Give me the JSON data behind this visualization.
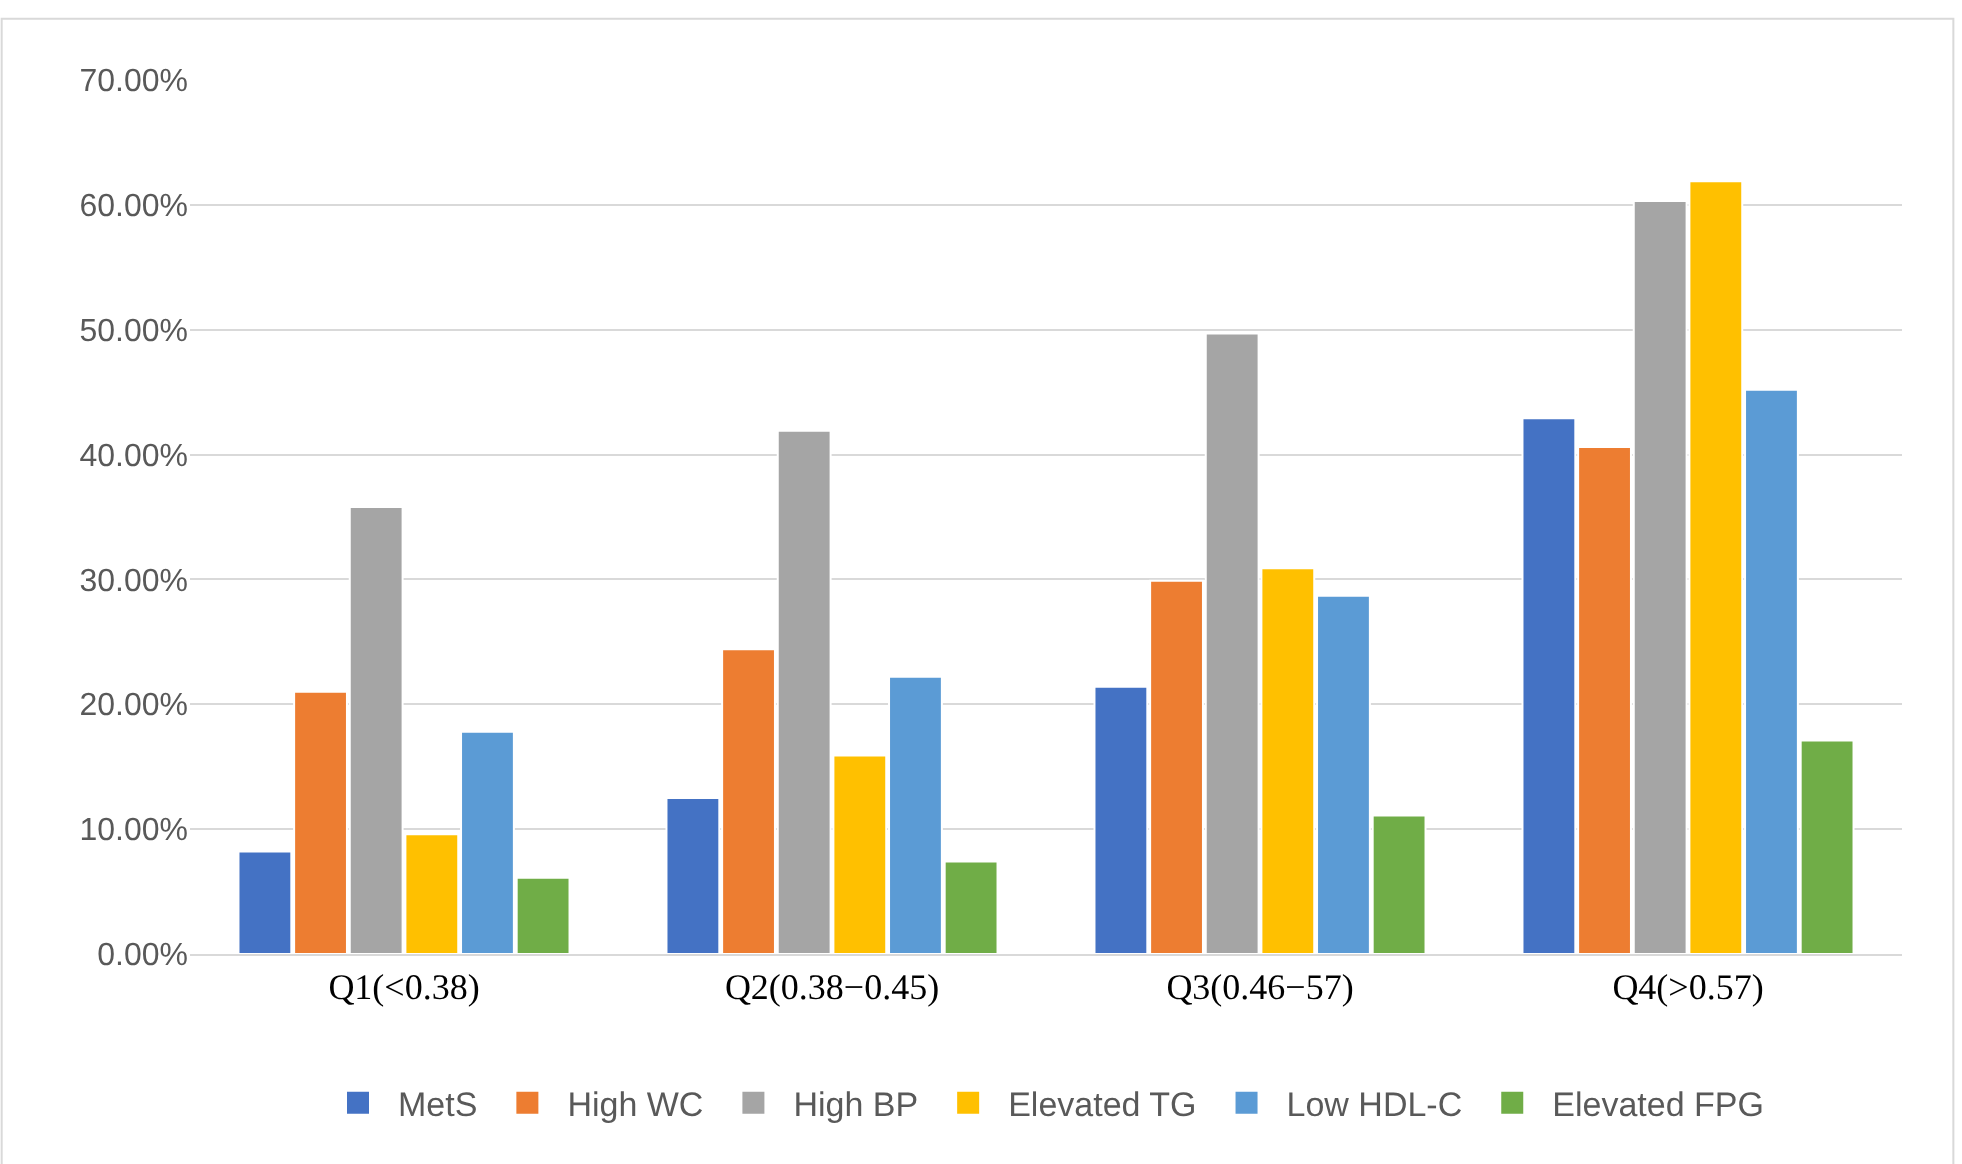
{
  "chart_data": {
    "type": "bar",
    "categories": [
      "Q1(<0.38)",
      "Q2(0.38−0.45)",
      "Q3(0.46−57)",
      "Q4(>0.57)"
    ],
    "series": [
      {
        "name": "MetS",
        "color": "#4472c4",
        "values": [
          8.2,
          12.5,
          21.4,
          42.9
        ]
      },
      {
        "name": "High WC",
        "color": "#ed7d31",
        "values": [
          21.0,
          24.4,
          29.9,
          40.6
        ]
      },
      {
        "name": "High BP",
        "color": "#a5a5a5",
        "values": [
          35.8,
          41.9,
          49.7,
          60.3
        ]
      },
      {
        "name": "Elevated TG",
        "color": "#ffc000",
        "values": [
          9.6,
          15.9,
          30.9,
          61.9
        ]
      },
      {
        "name": "Low HDL-C",
        "color": "#5b9bd5",
        "values": [
          17.8,
          22.2,
          28.7,
          45.2
        ]
      },
      {
        "name": "Elevated FPG",
        "color": "#70ad47",
        "values": [
          6.1,
          7.4,
          11.1,
          17.1
        ]
      }
    ],
    "ylim": [
      0,
      70
    ],
    "yticks": [
      {
        "value": 0,
        "label": "0.00%"
      },
      {
        "value": 10,
        "label": "10.00%"
      },
      {
        "value": 20,
        "label": "20.00%"
      },
      {
        "value": 30,
        "label": "30.00%"
      },
      {
        "value": 40,
        "label": "40.00%"
      },
      {
        "value": 50,
        "label": "50.00%"
      },
      {
        "value": 60,
        "label": "60.00%"
      },
      {
        "value": 70,
        "label": "70.00%"
      }
    ],
    "grid": "y",
    "legend": "bottom"
  }
}
